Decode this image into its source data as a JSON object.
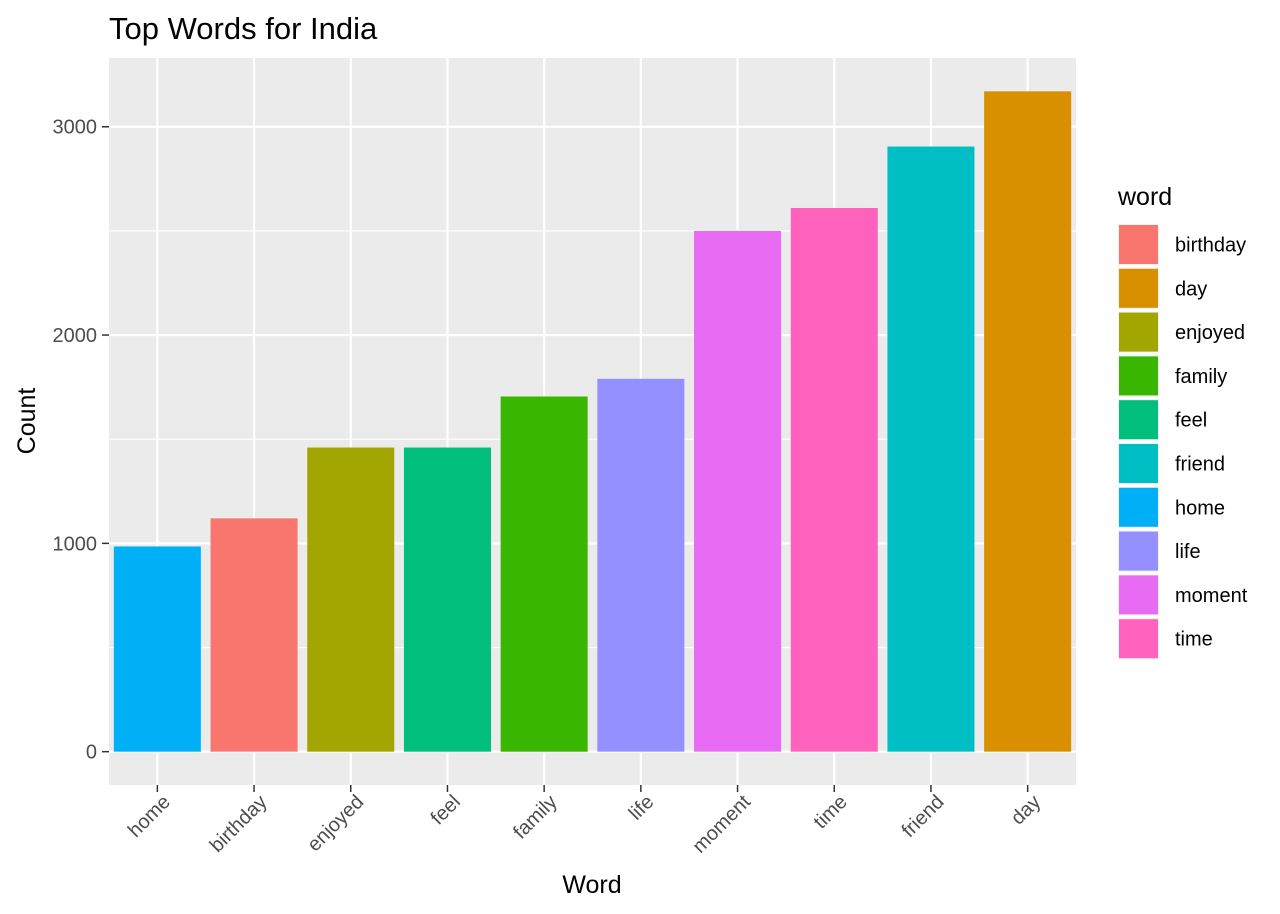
{
  "chart_data": {
    "type": "bar",
    "title": "Top Words for India",
    "xlabel": "Word",
    "ylabel": "Count",
    "categories": [
      "home",
      "birthday",
      "enjoyed",
      "feel",
      "family",
      "life",
      "moment",
      "time",
      "friend",
      "day"
    ],
    "values": [
      985,
      1120,
      1460,
      1460,
      1705,
      1790,
      2500,
      2610,
      2905,
      3170
    ],
    "ylim": [
      -160,
      3330
    ],
    "yticks": [
      0,
      1000,
      2000,
      3000
    ],
    "ytick_labels": [
      "0",
      "1000",
      "2000",
      "3000"
    ],
    "grid": true,
    "panel_background": "#ebebeb",
    "grid_color": "#ffffff",
    "x_tick_rotation_deg": -45,
    "legend": {
      "title": "word",
      "position": "right",
      "entries": [
        {
          "label": "birthday",
          "color": "#F8766D"
        },
        {
          "label": "day",
          "color": "#D89000"
        },
        {
          "label": "enjoyed",
          "color": "#A3A500"
        },
        {
          "label": "family",
          "color": "#39B600"
        },
        {
          "label": "feel",
          "color": "#00BF7D"
        },
        {
          "label": "friend",
          "color": "#00BFC4"
        },
        {
          "label": "home",
          "color": "#00B0F6"
        },
        {
          "label": "life",
          "color": "#9590FF"
        },
        {
          "label": "moment",
          "color": "#E76BF3"
        },
        {
          "label": "time",
          "color": "#FF62BC"
        }
      ]
    }
  }
}
